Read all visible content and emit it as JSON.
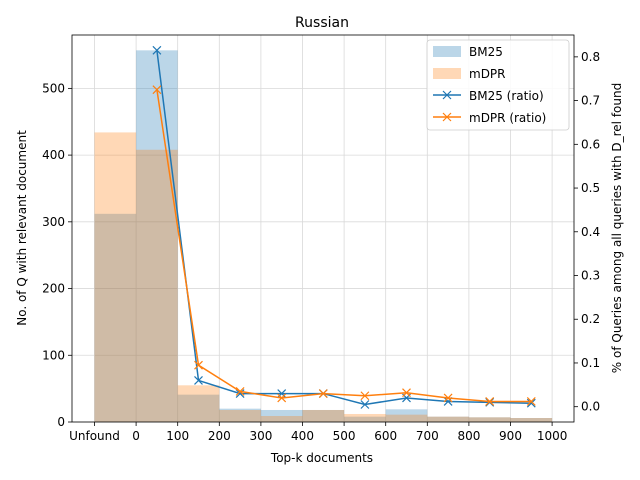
{
  "chart_data": {
    "type": "bar",
    "title": "Russian",
    "xlabel": "Top-k documents",
    "ylabel_left": "No. of Q with relevant document",
    "ylabel_right": "% of Queries among all queries with D_rel found",
    "x_ticks": [
      "Unfound",
      "0",
      "100",
      "200",
      "300",
      "400",
      "500",
      "600",
      "700",
      "800",
      "900",
      "1000"
    ],
    "bins": [
      "Unfound",
      "0-100",
      "100-200",
      "200-300",
      "300-400",
      "400-500",
      "500-600",
      "600-700",
      "700-800",
      "800-900",
      "900-1000"
    ],
    "ylim_left": [
      0,
      580
    ],
    "ylim_right": [
      -0.035,
      0.85
    ],
    "y_ticks_left": [
      0,
      100,
      200,
      300,
      400,
      500
    ],
    "y_ticks_right": [
      0.0,
      0.1,
      0.2,
      0.3,
      0.4,
      0.5,
      0.6,
      0.7,
      0.8
    ],
    "grid": true,
    "legend_position": "top-right",
    "series": [
      {
        "name": "BM25",
        "kind": "bar",
        "axis": "left",
        "color": "#1f77b4",
        "values": [
          312,
          557,
          41,
          20,
          18,
          18,
          8,
          19,
          8,
          7,
          6
        ]
      },
      {
        "name": "mDPR",
        "kind": "bar",
        "axis": "left",
        "color": "#ff7f0e",
        "values": [
          434,
          408,
          55,
          18,
          9,
          18,
          12,
          11,
          8,
          7,
          6
        ]
      },
      {
        "name": "BM25 (ratio)",
        "kind": "line",
        "axis": "right",
        "color": "#1f77b4",
        "marker": "x",
        "x": [
          50,
          150,
          250,
          350,
          450,
          550,
          650,
          750,
          850,
          950
        ],
        "values": [
          0.815,
          0.06,
          0.03,
          0.03,
          0.03,
          0.005,
          0.02,
          0.012,
          0.01,
          0.008
        ]
      },
      {
        "name": "mDPR (ratio)",
        "kind": "line",
        "axis": "right",
        "color": "#ff7f0e",
        "marker": "x",
        "x": [
          50,
          150,
          250,
          350,
          450,
          550,
          650,
          750,
          850,
          950
        ],
        "values": [
          0.725,
          0.095,
          0.035,
          0.02,
          0.03,
          0.025,
          0.032,
          0.02,
          0.012,
          0.012
        ]
      }
    ]
  }
}
